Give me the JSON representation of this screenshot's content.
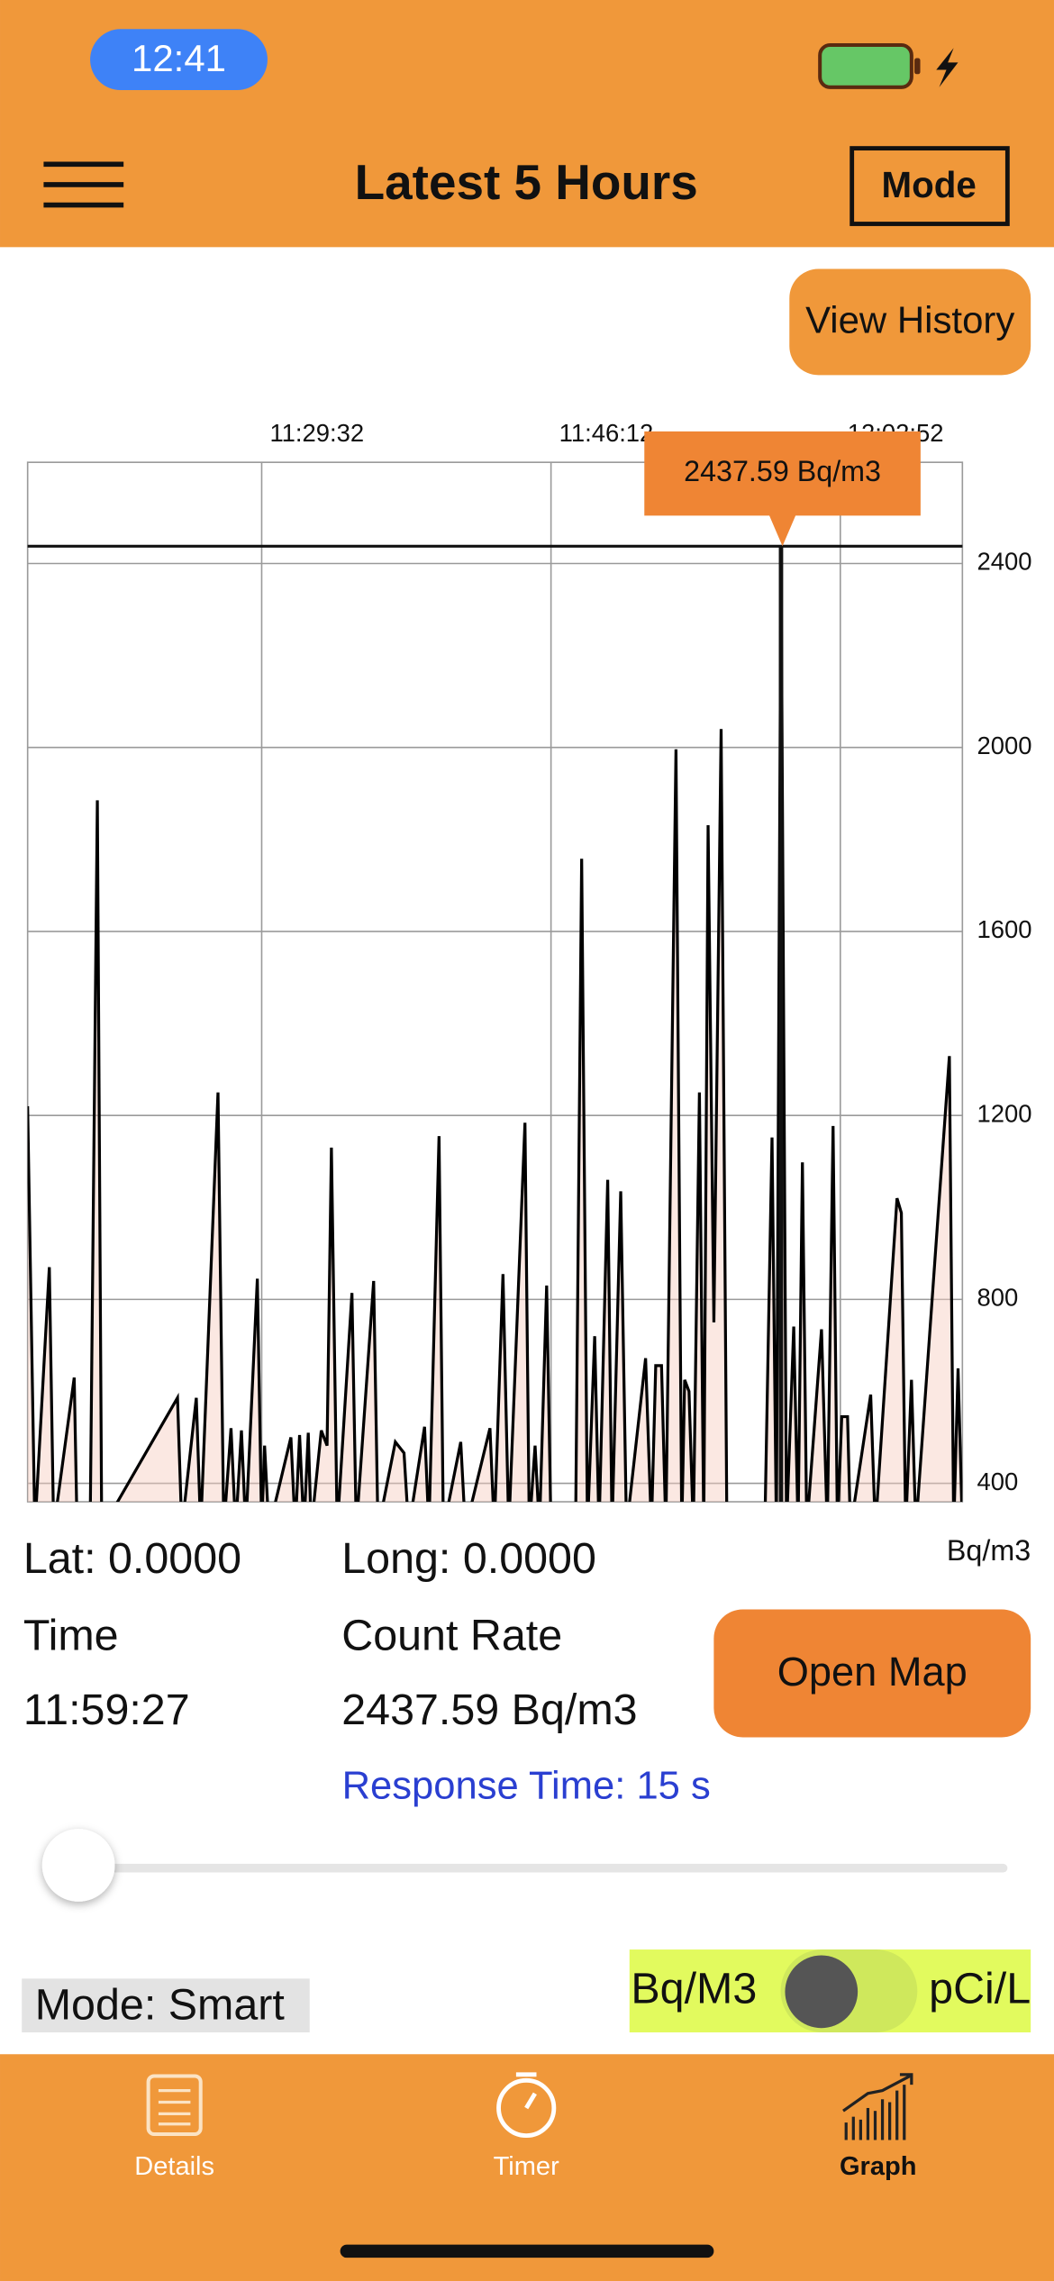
{
  "status_bar": {
    "time": "12:41"
  },
  "header": {
    "title": "Latest 5 Hours",
    "mode_button": "Mode"
  },
  "view_history_button": "View History",
  "chart_data": {
    "type": "line",
    "x": [
      40563,
      40588,
      40638,
      40653,
      40724,
      40734,
      40779,
      40804,
      40819,
      41081,
      41096,
      41146,
      41161,
      41221,
      41241,
      41266,
      41282,
      41302,
      41317,
      41357,
      41372,
      41382,
      41397,
      41473,
      41488,
      41503,
      41518,
      41533,
      41543,
      41578,
      41598,
      41613,
      41633,
      41684,
      41699,
      41759,
      41774,
      41834,
      41864,
      41880,
      41935,
      41950,
      41985,
      42000,
      42060,
      42076,
      42161,
      42176,
      42206,
      42226,
      42282,
      42297,
      42317,
      42332,
      42357,
      42372,
      42457,
      42478,
      42498,
      42523,
      42538,
      42568,
      42583,
      42613,
      42633,
      42699,
      42719,
      42734,
      42754,
      42769,
      42804,
      42824,
      42834,
      42849,
      42864,
      42885,
      42900,
      42915,
      42935,
      42960,
      42980,
      43111,
      43136,
      43151,
      43167,
      43186,
      43211,
      43226,
      43241,
      43256,
      43307,
      43327,
      43347,
      43362,
      43377,
      43397,
      43407,
      43477,
      43493,
      43568,
      43583,
      43598,
      43618,
      43633,
      43749,
      43764,
      43779,
      43794
    ],
    "values": [
      1220,
      300,
      870,
      300,
      630,
      300,
      300,
      1885,
      300,
      586,
      300,
      586,
      300,
      1250,
      300,
      520,
      300,
      515,
      300,
      845,
      300,
      482,
      300,
      500,
      300,
      505,
      300,
      510,
      300,
      515,
      482,
      1130,
      300,
      814,
      300,
      840,
      300,
      490,
      466,
      300,
      523,
      300,
      1155,
      300,
      490,
      300,
      520,
      300,
      855,
      300,
      1184,
      300,
      482,
      300,
      830,
      300,
      300,
      1758,
      300,
      720,
      300,
      1060,
      300,
      1035,
      300,
      672,
      300,
      656,
      656,
      300,
      1996,
      300,
      625,
      600,
      300,
      1250,
      300,
      1831,
      750,
      2040,
      300,
      300,
      1152,
      300,
      2437.59,
      300,
      741,
      300,
      1098,
      300,
      735,
      300,
      1177,
      300,
      545,
      545,
      300,
      593,
      300,
      1020,
      988,
      300,
      625,
      300,
      1329,
      300,
      650,
      300
    ],
    "color": "#000000",
    "fill_color": "#f7cdbf",
    "xlim": [
      40563,
      43794
    ],
    "ylim": [
      360,
      2620
    ],
    "xticks": [
      {
        "value": 41372,
        "label": "11:29:32"
      },
      {
        "value": 42372,
        "label": "11:46:12"
      },
      {
        "value": 43372,
        "label": "12:02:52"
      }
    ],
    "yticks": [
      400,
      800,
      1200,
      1600,
      2000,
      2400
    ],
    "grid": true,
    "y_axis_side": "right",
    "y_unit": "Bq/m3",
    "tooltip": {
      "x": 43167,
      "value": 2437.59,
      "label": "2437.59 Bq/m3",
      "color": "#ef8534"
    }
  },
  "selected_point": {
    "lat": "Lat: 0.0000",
    "long": "Long: 0.0000",
    "time_label": "Time",
    "time": "11:59:27",
    "count_rate_label": "Count Rate",
    "count_rate": "2437.59 Bq/m3"
  },
  "open_map_button": "Open Map",
  "response_time": "Response Time: 15 s",
  "mode": "Mode: Smart",
  "unit_toggle": {
    "left": "Bq/M3",
    "right": "pCi/L"
  },
  "tabs": [
    "Details",
    "Timer",
    "Graph"
  ]
}
